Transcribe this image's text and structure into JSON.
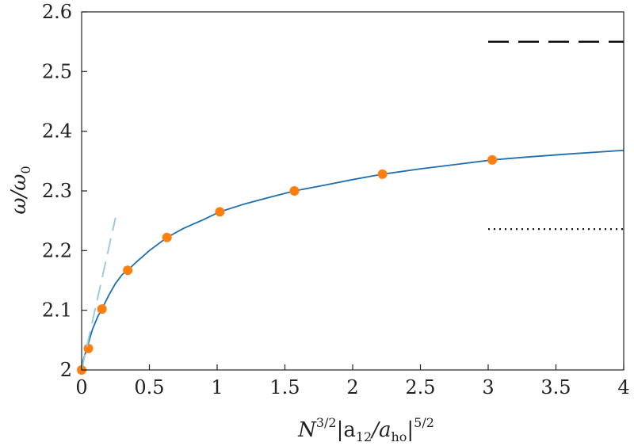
{
  "chart_data": {
    "type": "line",
    "xlabel_parts": {
      "base": "N",
      "sup1": "3/2",
      "mid": "|a",
      "sub1": "12",
      "slash": "/a",
      "sub2": "ho",
      "end": "|",
      "sup2": "5/2"
    },
    "ylabel_parts": {
      "a": "ω/ω",
      "sub": "0"
    },
    "xlim": [
      0,
      4
    ],
    "ylim": [
      2,
      2.6
    ],
    "x_ticks": [
      "0",
      "0.5",
      "1",
      "1.5",
      "2",
      "2.5",
      "3",
      "3.5",
      "4"
    ],
    "y_ticks": [
      "2",
      "2.1",
      "2.2",
      "2.3",
      "2.4",
      "2.5",
      "2.6"
    ],
    "grid": false,
    "series": [
      {
        "kind": "curve",
        "color": "#1f6fae",
        "x": [
          0,
          0.01,
          0.03,
          0.05,
          0.08,
          0.12,
          0.15,
          0.2,
          0.25,
          0.3,
          0.34,
          0.4,
          0.5,
          0.63,
          0.75,
          0.9,
          1.02,
          1.2,
          1.4,
          1.57,
          1.8,
          2.0,
          2.22,
          2.5,
          2.75,
          3.03,
          3.3,
          3.6,
          4.0
        ],
        "y": [
          2.0,
          2.015,
          2.03,
          2.045,
          2.068,
          2.09,
          2.102,
          2.125,
          2.145,
          2.16,
          2.167,
          2.18,
          2.2,
          2.222,
          2.237,
          2.252,
          2.265,
          2.278,
          2.29,
          2.3,
          2.31,
          2.319,
          2.328,
          2.337,
          2.344,
          2.352,
          2.357,
          2.362,
          2.368
        ]
      },
      {
        "kind": "points",
        "color": "#ff7f0e",
        "x": [
          0.0,
          0.05,
          0.15,
          0.34,
          0.63,
          1.02,
          1.57,
          2.22,
          3.03
        ],
        "y": [
          2.0,
          2.036,
          2.102,
          2.167,
          2.222,
          2.265,
          2.3,
          2.328,
          2.352
        ]
      },
      {
        "kind": "dashed-line",
        "color": "#9ecae1",
        "x": [
          0,
          0.25
        ],
        "y": [
          2.0,
          2.255
        ]
      },
      {
        "kind": "dashed-line",
        "color": "#000000",
        "x": [
          3.0,
          4.0
        ],
        "y": [
          2.55,
          2.55
        ]
      },
      {
        "kind": "dotted-line",
        "color": "#000000",
        "x": [
          3.0,
          4.0
        ],
        "y": [
          2.236,
          2.236
        ]
      }
    ]
  }
}
